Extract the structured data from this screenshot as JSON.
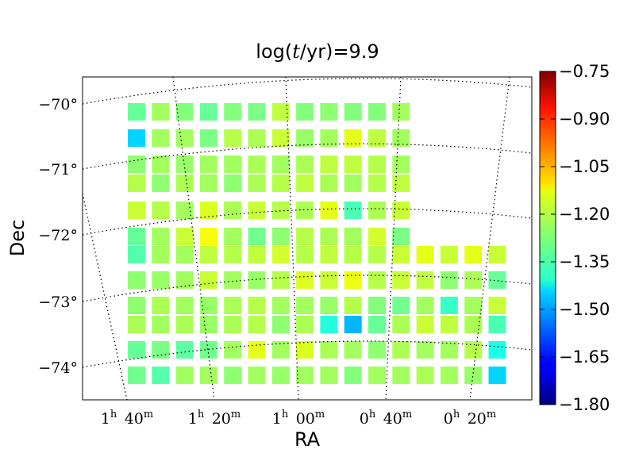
{
  "chart_data": {
    "type": "heatmap",
    "title": "log(t/yr)=9.9",
    "title_parts": {
      "pre": "log(",
      "var": "t",
      "post": "/yr)=9.9"
    },
    "xlabel": "RA",
    "ylabel": "Dec",
    "colorbar": {
      "colormap": "jet",
      "range": [
        -1.8,
        -0.75
      ],
      "ticks": [
        "−0.75",
        "−0.90",
        "−1.05",
        "−1.20",
        "−1.35",
        "−1.50",
        "−1.65",
        "−1.80"
      ]
    },
    "dec_ticks": [
      "−70°",
      "−71°",
      "−72°",
      "−73°",
      "−74°"
    ],
    "ra_ticks": [
      {
        "h": "1",
        "hu": "h",
        "m": "40",
        "mu": "m"
      },
      {
        "h": "1",
        "hu": "h",
        "m": "20",
        "mu": "m"
      },
      {
        "h": "1",
        "hu": "h",
        "m": "00",
        "mu": "m"
      },
      {
        "h": "0",
        "hu": "h",
        "m": "40",
        "mu": "m"
      },
      {
        "h": "0",
        "hu": "h",
        "m": "20",
        "mu": "m"
      }
    ],
    "grid": true,
    "rows": [
      [
        -1.3,
        -1.24,
        -1.27,
        -1.3,
        -1.27,
        -1.28,
        -1.21,
        -1.27,
        -1.26,
        -1.27,
        -1.27,
        -1.24
      ],
      [
        -1.45,
        -1.24,
        -1.24,
        -1.28,
        -1.22,
        -1.23,
        -1.2,
        -1.25,
        -1.24,
        -1.17,
        -1.21,
        -1.24
      ],
      [
        -1.26,
        -1.24,
        -1.25,
        -1.24,
        -1.24,
        -1.23,
        -1.24,
        -1.23,
        -1.21,
        -1.21,
        -1.22,
        -1.24
      ],
      [
        -1.22,
        -1.26,
        -1.23,
        -1.24,
        -1.26,
        -1.23,
        -1.22,
        -1.21,
        -1.23,
        -1.24,
        -1.22,
        -1.21
      ],
      [
        -1.2,
        -1.22,
        -1.24,
        -1.18,
        -1.23,
        -1.2,
        -1.22,
        -1.23,
        -1.17,
        -1.33,
        -1.23,
        -1.2
      ],
      [
        -1.3,
        -1.24,
        -1.2,
        -1.15,
        -1.24,
        -1.29,
        -1.26,
        -1.22,
        -1.23,
        -1.24,
        -1.19,
        -1.28
      ],
      [
        -1.32,
        -1.24,
        -1.24,
        -1.21,
        -1.22,
        -1.21,
        -1.19,
        -1.22,
        -1.21,
        -1.22,
        -1.22,
        -1.2,
        -1.17,
        -1.2,
        -1.17,
        -1.2
      ],
      [
        -1.26,
        -1.25,
        -1.24,
        -1.2,
        -1.24,
        -1.25,
        -1.22,
        -1.18,
        -1.2,
        -1.16,
        -1.22,
        -1.2,
        -1.21,
        -1.26,
        -1.23,
        -1.3
      ],
      [
        -1.26,
        -1.23,
        -1.24,
        -1.25,
        -1.23,
        -1.22,
        -1.24,
        -1.24,
        -1.25,
        -1.22,
        -1.27,
        -1.29,
        -1.24,
        -1.35,
        -1.24,
        -1.2
      ],
      [
        -1.23,
        -1.24,
        -1.23,
        -1.25,
        -1.23,
        -1.22,
        -1.26,
        -1.23,
        -1.37,
        -1.48,
        -1.3,
        -1.23,
        -1.2,
        -1.21,
        -1.23,
        -1.33
      ],
      [
        -1.3,
        -1.28,
        -1.31,
        -1.29,
        -1.24,
        -1.17,
        -1.24,
        -1.18,
        -1.23,
        -1.24,
        -1.26,
        -1.23,
        -1.24,
        -1.24,
        -1.22,
        -1.38
      ],
      [
        -1.29,
        -1.32,
        -1.24,
        -1.24,
        -1.26,
        -1.24,
        -1.25,
        -1.24,
        -1.24,
        -1.27,
        -1.24,
        -1.24,
        -1.23,
        -1.24,
        -1.25,
        -1.45
      ]
    ]
  }
}
